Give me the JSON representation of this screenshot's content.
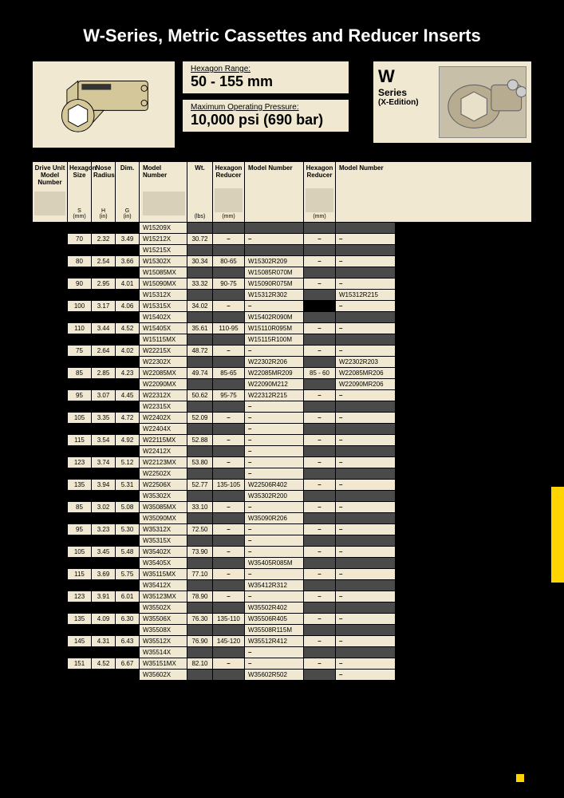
{
  "title": "W-Series, Metric Cassettes and Reducer Inserts",
  "spec1_label": "Hexagon Range:",
  "spec1_value": "50 - 155 mm",
  "spec2_label": "Maximum Operating Pressure:",
  "spec2_value": "10,000 psi (690 bar)",
  "series_w": "W",
  "series_sub": "Series",
  "series_xe": "(X-Edition)",
  "hdr": {
    "drive": "Drive Unit Model Number",
    "hex": "Hexagon Size",
    "hex_u": "S\n(mm)",
    "nose": "Nose Radius",
    "nose_u": "H\n(in)",
    "dim": "Dim.",
    "dim_u": "G\n(in)",
    "model": "Model Number",
    "wt": "Wt.",
    "wt_u": "(lbs)",
    "hr1": "Hexagon Reducer",
    "hr1_u": "(mm)",
    "mn1": "Model Number",
    "hr2": "Hexagon Reducer",
    "hr2_u": "(mm)",
    "mn2": "Model Number"
  },
  "rows": [
    {
      "hex": "",
      "s": "",
      "h": "",
      "g": "",
      "model": "W15209X",
      "wt": "",
      "hr1": "",
      "mn1": "",
      "hr2": "",
      "mn2": ""
    },
    {
      "hex": "70",
      "s": "2.32",
      "h": "3.49",
      "g": "",
      "model": "W15212X",
      "wt": "30.72",
      "hr1": "–",
      "mn1": "–",
      "hr2": "–",
      "mn2": "–"
    },
    {
      "hex": "",
      "s": "",
      "h": "",
      "g": "",
      "model": "W15215X",
      "wt": "",
      "hr1": "",
      "mn1": "",
      "hr2": "",
      "mn2": ""
    },
    {
      "hex": "80",
      "s": "2.54",
      "h": "3.66",
      "g": "",
      "model": "W15302X",
      "wt": "30.34",
      "hr1": "80-65",
      "mn1": "W15302R209",
      "hr2": "–",
      "mn2": "–"
    },
    {
      "hex": "",
      "s": "",
      "h": "",
      "g": "",
      "model": "W15085MX",
      "wt": "",
      "hr1": "",
      "mn1": "W15085R070M",
      "hr2": "",
      "mn2": ""
    },
    {
      "hex": "90",
      "s": "2.95",
      "h": "4.01",
      "g": "",
      "model": "W15090MX",
      "wt": "33.32",
      "hr1": "90-75",
      "mn1": "W15090R075M",
      "hr2": "–",
      "mn2": "–"
    },
    {
      "hex": "",
      "s": "",
      "h": "",
      "g": "",
      "model": "W15312X",
      "wt": "",
      "hr1": "",
      "mn1": "W15312R302",
      "hr2": "",
      "mn2": "W15312R215"
    },
    {
      "hex": "100",
      "s": "3.17",
      "h": "4.06",
      "g": "",
      "model": "W15315X",
      "wt": "34.02",
      "hr1": "–",
      "mn1": "–",
      "hr2": "",
      "mn2": "–"
    },
    {
      "hex": "",
      "s": "",
      "h": "",
      "g": "",
      "model": "W15402X",
      "wt": "",
      "hr1": "",
      "mn1": "W15402R090M",
      "hr2": "",
      "mn2": ""
    },
    {
      "hex": "110",
      "s": "3.44",
      "h": "4.52",
      "g": "",
      "model": "W15405X",
      "wt": "35.61",
      "hr1": "110-95",
      "mn1": "W15110R095M",
      "hr2": "–",
      "mn2": "–"
    },
    {
      "hex": "",
      "s": "",
      "h": "",
      "g": "",
      "model": "W15115MX",
      "wt": "",
      "hr1": "",
      "mn1": "W15115R100M",
      "hr2": "",
      "mn2": ""
    },
    {
      "hex": "75",
      "s": "2.64",
      "h": "4.02",
      "g": "",
      "model": "W22215X",
      "wt": "48.72",
      "hr1": "–",
      "mn1": "–",
      "hr2": "–",
      "mn2": "–"
    },
    {
      "hex": "",
      "s": "",
      "h": "",
      "g": "",
      "model": "W22302X",
      "wt": "",
      "hr1": "",
      "mn1": "W22302R206",
      "hr2": "",
      "mn2": "W22302R203"
    },
    {
      "hex": "85",
      "s": "2.85",
      "h": "4.23",
      "g": "",
      "model": "W22085MX",
      "wt": "49.74",
      "hr1": "85-65",
      "mn1": "W22085MR209",
      "hr2": "85 - 60",
      "mn2": "W22085MR206"
    },
    {
      "hex": "",
      "s": "",
      "h": "",
      "g": "",
      "model": "W22090MX",
      "wt": "",
      "hr1": "",
      "mn1": "W22090M212",
      "hr2": "",
      "mn2": "W22090MR206"
    },
    {
      "hex": "95",
      "s": "3.07",
      "h": "4.45",
      "g": "",
      "model": "W22312X",
      "wt": "50.62",
      "hr1": "95-75",
      "mn1": "W22312R215",
      "hr2": "–",
      "mn2": "–"
    },
    {
      "hex": "",
      "s": "",
      "h": "",
      "g": "",
      "model": "W22315X",
      "wt": "",
      "hr1": "",
      "mn1": "–",
      "hr2": "",
      "mn2": ""
    },
    {
      "hex": "105",
      "s": "3.35",
      "h": "4.72",
      "g": "",
      "model": "W22402X",
      "wt": "52.09",
      "hr1": "–",
      "mn1": "–",
      "hr2": "–",
      "mn2": "–"
    },
    {
      "hex": "",
      "s": "",
      "h": "",
      "g": "",
      "model": "W22404X",
      "wt": "",
      "hr1": "",
      "mn1": "–",
      "hr2": "",
      "mn2": ""
    },
    {
      "hex": "115",
      "s": "3.54",
      "h": "4.92",
      "g": "",
      "model": "W22115MX",
      "wt": "52.88",
      "hr1": "–",
      "mn1": "–",
      "hr2": "–",
      "mn2": "–"
    },
    {
      "hex": "",
      "s": "",
      "h": "",
      "g": "",
      "model": "W22412X",
      "wt": "",
      "hr1": "",
      "mn1": "–",
      "hr2": "",
      "mn2": ""
    },
    {
      "hex": "123",
      "s": "3.74",
      "h": "5.12",
      "g": "",
      "model": "W22123MX",
      "wt": "53.80",
      "hr1": "–",
      "mn1": "–",
      "hr2": "–",
      "mn2": "–"
    },
    {
      "hex": "",
      "s": "",
      "h": "",
      "g": "",
      "model": "W22502X",
      "wt": "",
      "hr1": "",
      "mn1": "–",
      "hr2": "",
      "mn2": ""
    },
    {
      "hex": "135",
      "s": "3.94",
      "h": "5.31",
      "g": "",
      "model": "W22506X",
      "wt": "52.77",
      "hr1": "135-105",
      "mn1": "W22506R402",
      "hr2": "–",
      "mn2": "–"
    },
    {
      "hex": "",
      "s": "",
      "h": "",
      "g": "",
      "model": "W35302X",
      "wt": "",
      "hr1": "",
      "mn1": "W35302R200",
      "hr2": "",
      "mn2": ""
    },
    {
      "hex": "85",
      "s": "3.02",
      "h": "5.08",
      "g": "",
      "model": "W35085MX",
      "wt": "33.10",
      "hr1": "–",
      "mn1": "–",
      "hr2": "–",
      "mn2": "–"
    },
    {
      "hex": "",
      "s": "",
      "h": "",
      "g": "",
      "model": "W35090MX",
      "wt": "",
      "hr1": "",
      "mn1": "W35090R206",
      "hr2": "",
      "mn2": ""
    },
    {
      "hex": "95",
      "s": "3.23",
      "h": "5.30",
      "g": "",
      "model": "W35312X",
      "wt": "72.50",
      "hr1": "–",
      "mn1": "–",
      "hr2": "–",
      "mn2": "–"
    },
    {
      "hex": "",
      "s": "",
      "h": "",
      "g": "",
      "model": "W35315X",
      "wt": "",
      "hr1": "",
      "mn1": "–",
      "hr2": "",
      "mn2": ""
    },
    {
      "hex": "105",
      "s": "3.45",
      "h": "5.48",
      "g": "",
      "model": "W35402X",
      "wt": "73.90",
      "hr1": "–",
      "mn1": "–",
      "hr2": "–",
      "mn2": "–"
    },
    {
      "hex": "",
      "s": "",
      "h": "",
      "g": "",
      "model": "W35405X",
      "wt": "",
      "hr1": "",
      "mn1": "W35405R085M",
      "hr2": "",
      "mn2": ""
    },
    {
      "hex": "115",
      "s": "3.69",
      "h": "5.75",
      "g": "",
      "model": "W35115MX",
      "wt": "77.10",
      "hr1": "–",
      "mn1": "–",
      "hr2": "–",
      "mn2": "–"
    },
    {
      "hex": "",
      "s": "",
      "h": "",
      "g": "",
      "model": "W35412X",
      "wt": "",
      "hr1": "",
      "mn1": "W35412R312",
      "hr2": "",
      "mn2": ""
    },
    {
      "hex": "123",
      "s": "3.91",
      "h": "6.01",
      "g": "",
      "model": "W35123MX",
      "wt": "78.90",
      "hr1": "–",
      "mn1": "–",
      "hr2": "–",
      "mn2": "–"
    },
    {
      "hex": "",
      "s": "",
      "h": "",
      "g": "",
      "model": "W35502X",
      "wt": "",
      "hr1": "",
      "mn1": "W35502R402",
      "hr2": "",
      "mn2": ""
    },
    {
      "hex": "135",
      "s": "4.09",
      "h": "6.30",
      "g": "",
      "model": "W35506X",
      "wt": "76.30",
      "hr1": "135-110",
      "mn1": "W35506R405",
      "hr2": "–",
      "mn2": "–"
    },
    {
      "hex": "",
      "s": "",
      "h": "",
      "g": "",
      "model": "W35508X",
      "wt": "",
      "hr1": "",
      "mn1": "W35508R115M",
      "hr2": "",
      "mn2": ""
    },
    {
      "hex": "145",
      "s": "4.31",
      "h": "6.43",
      "g": "",
      "model": "W35512X",
      "wt": "76.90",
      "hr1": "145-120",
      "mn1": "W35512R412",
      "hr2": "–",
      "mn2": "–"
    },
    {
      "hex": "",
      "s": "",
      "h": "",
      "g": "",
      "model": "W35514X",
      "wt": "",
      "hr1": "",
      "mn1": "–",
      "hr2": "",
      "mn2": ""
    },
    {
      "hex": "151",
      "s": "4.52",
      "h": "6.67",
      "g": "",
      "model": "W35151MX",
      "wt": "82.10",
      "hr1": "–",
      "mn1": "–",
      "hr2": "–",
      "mn2": "–"
    },
    {
      "hex": "",
      "s": "",
      "h": "",
      "g": "",
      "model": "W35602X",
      "wt": "",
      "hr1": "",
      "mn1": "W35602R502",
      "hr2": "",
      "mn2": "–"
    }
  ]
}
